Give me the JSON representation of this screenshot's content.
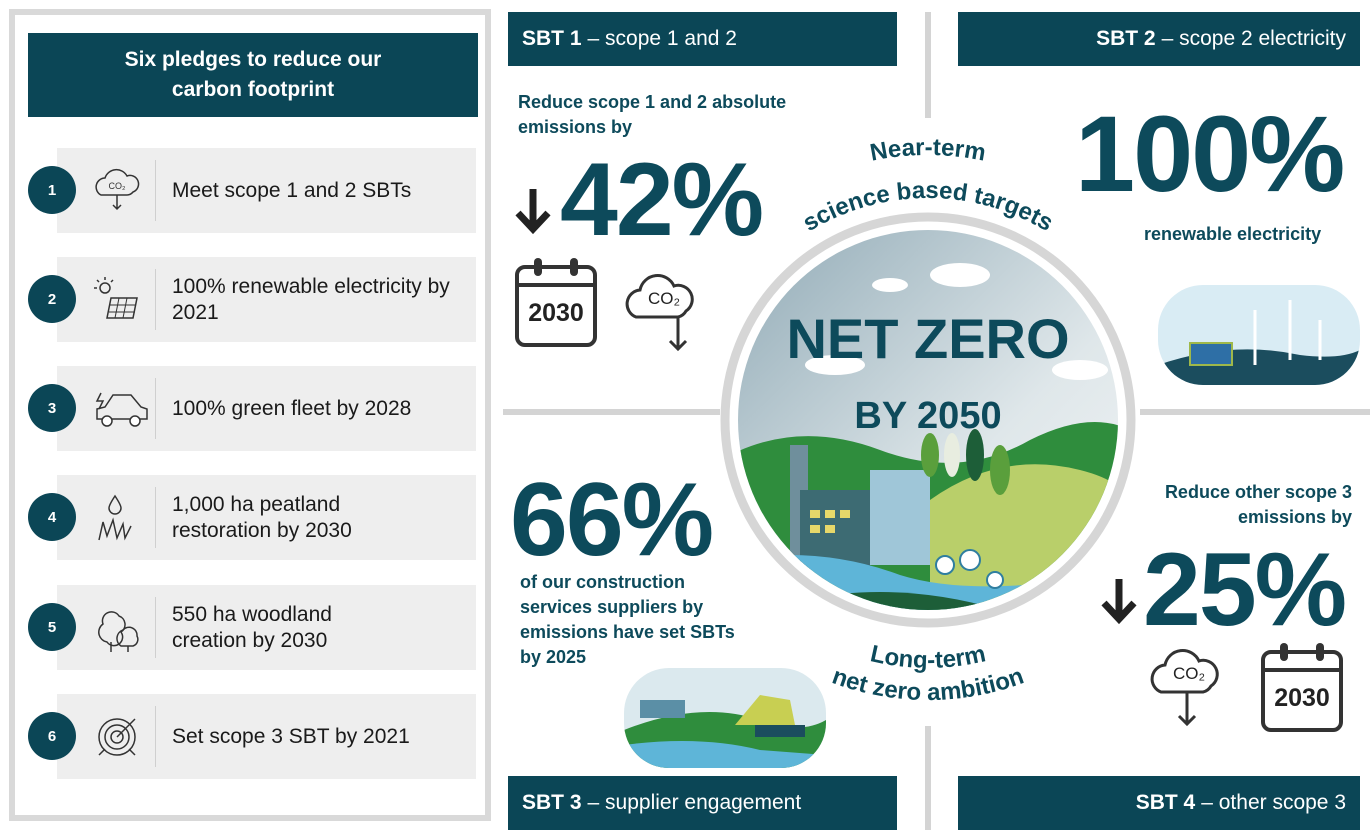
{
  "pledges": {
    "title": "Six pledges to reduce our carbon footprint",
    "items": [
      {
        "number": "1",
        "text": "Meet scope 1 and 2 SBTs"
      },
      {
        "number": "2",
        "text": "100% renewable electricity by 2021"
      },
      {
        "number": "3",
        "text": "100% green fleet by 2028"
      },
      {
        "number": "4",
        "text": "1,000 ha peatland restoration by 2030"
      },
      {
        "number": "5",
        "text": "550 ha woodland creation by 2030"
      },
      {
        "number": "6",
        "text": "Set scope 3 SBT by 2021"
      }
    ]
  },
  "sbt1": {
    "label": "SBT 1",
    "description": "– scope 1 and 2",
    "intro": "Reduce scope 1 and 2 absolute emissions by",
    "value": "42%",
    "year": "2030",
    "icon_text": "CO₂"
  },
  "sbt2": {
    "label": "SBT 2",
    "description": "– scope 2 electricity",
    "value": "100%",
    "caption": "renewable electricity"
  },
  "sbt3": {
    "label": "SBT 3",
    "description": "– supplier engagement",
    "value": "66%",
    "caption": "of our construction services suppliers by emissions have set SBTs by 2025"
  },
  "sbt4": {
    "label": "SBT 4",
    "description": "– other scope 3",
    "intro": "Reduce other scope 3 emissions by",
    "value": "25%",
    "year": "2030",
    "icon_text": "CO₂"
  },
  "center": {
    "top_line1": "Near-term",
    "top_line2": "science based targets",
    "title": "NET ZERO",
    "subtitle": "BY 2050",
    "bottom_line1": "Long-term",
    "bottom_line2": "net zero ambition"
  }
}
